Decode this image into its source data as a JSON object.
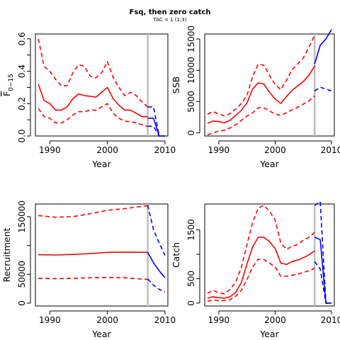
{
  "title": "Fsq, then zero catch",
  "subtitle": "TAC = 1 (1;3)",
  "colors": {
    "historic": "#ff0000",
    "projection": "#0000ff",
    "divider": "#bebebe",
    "axis": "#000000"
  },
  "chart_data": [
    {
      "type": "line",
      "ylabel": "F̄ 0−15",
      "ylabel_main": "F",
      "ylabel_sub": "0−15",
      "xlabel": "Year",
      "xlim": [
        1987.5,
        2010.5
      ],
      "ylim": [
        0,
        0.63
      ],
      "xticks": [
        1990,
        2000,
        2010
      ],
      "yticks": [
        0.0,
        0.1,
        0.2,
        0.3,
        0.4,
        0.5,
        0.6
      ],
      "ytick_labels": [
        "0.0",
        "",
        "0.2",
        "",
        "0.4",
        "",
        "0.6"
      ],
      "divider_year": 2007,
      "series": [
        {
          "style": "hist-solid",
          "x": [
            1988,
            1989,
            1990,
            1991,
            1992,
            1993,
            1994,
            1995,
            1996,
            1997,
            1998,
            1999,
            2000,
            2001,
            2002,
            2003,
            2004,
            2005,
            2006,
            2007
          ],
          "y": [
            0.32,
            0.22,
            0.2,
            0.16,
            0.16,
            0.18,
            0.23,
            0.26,
            0.25,
            0.245,
            0.24,
            0.27,
            0.3,
            0.23,
            0.19,
            0.16,
            0.16,
            0.14,
            0.12,
            0.12
          ]
        },
        {
          "style": "hist-dash",
          "x": [
            1988,
            1989,
            1990,
            1991,
            1992,
            1993,
            1994,
            1995,
            1996,
            1997,
            1998,
            1999,
            2000,
            2001,
            2002,
            2003,
            2004,
            2005,
            2006,
            2007
          ],
          "y": [
            0.6,
            0.43,
            0.4,
            0.35,
            0.31,
            0.31,
            0.39,
            0.44,
            0.43,
            0.37,
            0.36,
            0.39,
            0.46,
            0.36,
            0.3,
            0.25,
            0.27,
            0.25,
            0.21,
            0.18
          ]
        },
        {
          "style": "hist-dash",
          "x": [
            1988,
            1989,
            1990,
            1991,
            1992,
            1993,
            1994,
            1995,
            1996,
            1997,
            1998,
            1999,
            2000,
            2001,
            2002,
            2003,
            2004,
            2005,
            2006,
            2007
          ],
          "y": [
            0.17,
            0.12,
            0.11,
            0.08,
            0.08,
            0.1,
            0.13,
            0.15,
            0.15,
            0.16,
            0.16,
            0.18,
            0.2,
            0.14,
            0.11,
            0.09,
            0.09,
            0.08,
            0.07,
            0.06
          ]
        },
        {
          "style": "proj-solid",
          "x": [
            2007,
            2008,
            2009,
            2010
          ],
          "y": [
            0.11,
            0.11,
            0.0,
            0.0
          ]
        },
        {
          "style": "proj-dash",
          "x": [
            2007,
            2008,
            2009,
            2010
          ],
          "y": [
            0.18,
            0.18,
            0.0,
            0.0
          ]
        },
        {
          "style": "proj-dash",
          "x": [
            2007,
            2008,
            2009,
            2010
          ],
          "y": [
            0.06,
            0.06,
            0.0,
            0.0
          ]
        }
      ]
    },
    {
      "type": "line",
      "ylabel": "SSB",
      "xlabel": "Year",
      "xlim": [
        1987.5,
        2010.5
      ],
      "ylim": [
        -500,
        15800
      ],
      "xticks": [
        1990,
        2000,
        2010
      ],
      "yticks": [
        0,
        5000,
        10000,
        15000
      ],
      "ytick_labels": [
        "0",
        "5000",
        "10000",
        "15000"
      ],
      "divider_year": 2007,
      "series": [
        {
          "style": "hist-solid",
          "x": [
            1988,
            1989,
            1990,
            1991,
            1992,
            1993,
            1994,
            1995,
            1996,
            1997,
            1998,
            1999,
            2000,
            2001,
            2002,
            2003,
            2004,
            2005,
            2006,
            2007
          ],
          "y": [
            1500,
            1900,
            1800,
            1600,
            2000,
            2800,
            3600,
            4800,
            7000,
            8000,
            7800,
            6500,
            5400,
            4700,
            5800,
            6800,
            7500,
            8200,
            9200,
            10700
          ]
        },
        {
          "style": "hist-dash",
          "x": [
            1988,
            1989,
            1990,
            1991,
            1992,
            1993,
            1994,
            1995,
            1996,
            1997,
            1998,
            1999,
            2000,
            2001,
            2002,
            2003,
            2004,
            2005,
            2006,
            2007
          ],
          "y": [
            3000,
            3400,
            3000,
            2700,
            3100,
            3800,
            4700,
            6000,
            9000,
            11000,
            10800,
            9200,
            7700,
            6900,
            8400,
            10100,
            11000,
            12000,
            13700,
            15600
          ]
        },
        {
          "style": "hist-dash",
          "x": [
            1988,
            1989,
            1990,
            1991,
            1992,
            1993,
            1994,
            1995,
            1996,
            1997,
            1998,
            1999,
            2000,
            2001,
            2002,
            2003,
            2004,
            2005,
            2006,
            2007
          ],
          "y": [
            -300,
            0,
            300,
            400,
            800,
            1300,
            2000,
            2700,
            3200,
            4000,
            4000,
            3500,
            3000,
            2800,
            3200,
            3700,
            4100,
            4600,
            5100,
            5900
          ]
        },
        {
          "style": "proj-solid",
          "x": [
            2007,
            2008,
            2009,
            2010
          ],
          "y": [
            11000,
            14000,
            15000,
            16500
          ]
        },
        {
          "style": "proj-dash",
          "x": [
            2007,
            2008,
            2009,
            2010
          ],
          "y": [
            6700,
            7300,
            7000,
            6700
          ]
        }
      ]
    },
    {
      "type": "line",
      "ylabel": "Recruitment",
      "xlabel": "Year",
      "xlim": [
        1987.5,
        2010.5
      ],
      "ylim": [
        -5000,
        172000
      ],
      "xticks": [
        1990,
        2000,
        2010
      ],
      "yticks": [
        0,
        50000,
        100000,
        150000
      ],
      "ytick_labels": [
        "0",
        "50000",
        "",
        "150000"
      ],
      "divider_year": 2007,
      "series": [
        {
          "style": "hist-solid",
          "x": [
            1988,
            1991,
            1994,
            1997,
            2000,
            2003,
            2007
          ],
          "y": [
            84000,
            83500,
            84500,
            86000,
            88000,
            88500,
            88000
          ]
        },
        {
          "style": "hist-dash",
          "x": [
            1988,
            1991,
            1994,
            1997,
            2000,
            2003,
            2007
          ],
          "y": [
            152000,
            149000,
            150000,
            155000,
            161000,
            164000,
            169000
          ]
        },
        {
          "style": "hist-dash",
          "x": [
            1988,
            1991,
            1994,
            1997,
            2000,
            2003,
            2007
          ],
          "y": [
            43000,
            42500,
            43000,
            44000,
            44500,
            44000,
            41000
          ]
        },
        {
          "style": "proj-solid",
          "x": [
            2007,
            2008,
            2009,
            2010
          ],
          "y": [
            88000,
            70000,
            56000,
            44000
          ]
        },
        {
          "style": "proj-dash",
          "x": [
            2007,
            2008,
            2009,
            2010
          ],
          "y": [
            170000,
            128000,
            104000,
            83000
          ]
        },
        {
          "style": "proj-dash",
          "x": [
            2007,
            2008,
            2009,
            2010
          ],
          "y": [
            42000,
            31000,
            24000,
            19000
          ]
        }
      ]
    },
    {
      "type": "line",
      "ylabel": "Catch",
      "xlabel": "Year",
      "xlim": [
        1987.5,
        2010.5
      ],
      "ylim": [
        -60,
        2030
      ],
      "xticks": [
        1990,
        2000,
        2010
      ],
      "yticks": [
        0,
        500,
        1000,
        1500
      ],
      "ytick_labels": [
        "0",
        "500",
        "",
        "1500"
      ],
      "divider_year": 2007,
      "series": [
        {
          "style": "hist-solid",
          "x": [
            1988,
            1989,
            1990,
            1991,
            1992,
            1993,
            1994,
            1995,
            1996,
            1997,
            1998,
            1999,
            2000,
            2001,
            2002,
            2003,
            2004,
            2005,
            2006,
            2007
          ],
          "y": [
            100,
            130,
            110,
            100,
            130,
            220,
            420,
            800,
            1150,
            1350,
            1350,
            1260,
            1120,
            820,
            790,
            850,
            880,
            930,
            990,
            1070
          ]
        },
        {
          "style": "hist-dash",
          "x": [
            1988,
            1989,
            1990,
            1991,
            1992,
            1993,
            1994,
            1995,
            1996,
            1997,
            1998,
            1999,
            2000,
            2001,
            2002,
            2003,
            2004,
            2005,
            2006,
            2007
          ],
          "y": [
            200,
            260,
            210,
            190,
            280,
            430,
            730,
            1200,
            1650,
            1950,
            2000,
            1880,
            1700,
            1230,
            1100,
            1160,
            1200,
            1290,
            1350,
            1450
          ]
        },
        {
          "style": "hist-dash",
          "x": [
            1988,
            1989,
            1990,
            1991,
            1992,
            1993,
            1994,
            1995,
            1996,
            1997,
            1998,
            1999,
            2000,
            2001,
            2002,
            2003,
            2004,
            2005,
            2006,
            2007
          ],
          "y": [
            40,
            60,
            50,
            50,
            70,
            140,
            260,
            480,
            740,
            900,
            890,
            820,
            740,
            550,
            550,
            570,
            590,
            630,
            660,
            710
          ]
        },
        {
          "style": "proj-solid",
          "x": [
            2007,
            2008,
            2009,
            2010
          ],
          "y": [
            1350,
            1300,
            0,
            0
          ]
        },
        {
          "style": "proj-dash",
          "x": [
            2007,
            2008,
            2009,
            2010
          ],
          "y": [
            2000,
            2080,
            0,
            0
          ]
        },
        {
          "style": "proj-dash",
          "x": [
            2007,
            2008,
            2009,
            2010
          ],
          "y": [
            850,
            700,
            0,
            0
          ]
        }
      ]
    }
  ]
}
